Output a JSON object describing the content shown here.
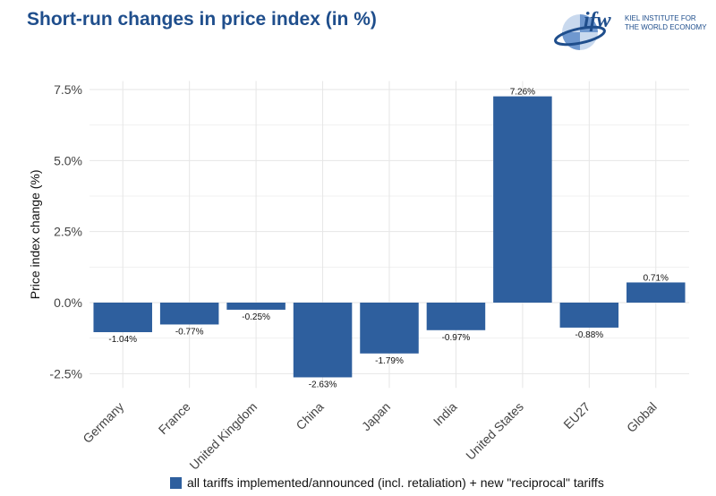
{
  "header": {
    "title": "Short-run changes in price index (in %)"
  },
  "logo": {
    "brand": "ifw",
    "line1": "KIEL INSTITUTE FOR",
    "line2": "THE WORLD ECONOMY"
  },
  "colors": {
    "bar": "#2e5f9e",
    "title": "#1f4e8c"
  },
  "chart_data": {
    "type": "bar",
    "title": "Short-run changes in price index (in %)",
    "xlabel": "",
    "ylabel": "Price index change (%)",
    "ylim": [
      -3.0,
      7.8
    ],
    "yticks": [
      -2.5,
      0.0,
      2.5,
      5.0,
      7.5
    ],
    "ytick_labels": [
      "-2.5%",
      "0.0%",
      "2.5%",
      "5.0%",
      "7.5%"
    ],
    "categories": [
      "Germany",
      "France",
      "United Kingdom",
      "China",
      "Japan",
      "India",
      "United States",
      "EU27",
      "Global"
    ],
    "series": [
      {
        "name": "all tariffs implemented/announced (incl. retaliation) + new \"reciprocal\" tariffs",
        "values": [
          -1.04,
          -0.77,
          -0.25,
          -2.63,
          -1.79,
          -0.97,
          7.26,
          -0.88,
          0.71
        ],
        "labels": [
          "-1.04%",
          "-0.77%",
          "-0.25%",
          "-2.63%",
          "-1.79%",
          "-0.97%",
          "7.26%",
          "-0.88%",
          "0.71%"
        ]
      }
    ],
    "grid": true,
    "legend_position": "bottom"
  }
}
